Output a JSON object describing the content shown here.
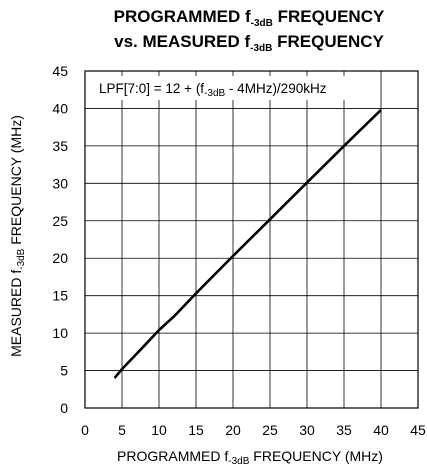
{
  "chart_data": {
    "type": "line",
    "title_line1": {
      "pre": "PROGRAMMED f",
      "sub": "-3dB",
      "post": " FREQUENCY"
    },
    "title_line2": {
      "pre": "vs. MEASURED f",
      "sub": "-3dB",
      "post": " FREQUENCY"
    },
    "xlabel": {
      "pre": "PROGRAMMED f",
      "sub": "-3dB",
      "post": " FREQUENCY (MHz)"
    },
    "ylabel": {
      "pre": "MEASURED f",
      "sub": "-3dB",
      "post": " FREQUENCY (MHz)"
    },
    "annotation": {
      "pre": "LPF[7:0] = 12 + (f",
      "sub": "-3dB",
      "post": " - 4MHz)/290kHz"
    },
    "xlim": [
      0,
      45
    ],
    "ylim": [
      0,
      45
    ],
    "x_ticks": [
      0,
      5,
      10,
      15,
      20,
      25,
      30,
      35,
      40,
      45
    ],
    "y_ticks": [
      0,
      5,
      10,
      15,
      20,
      25,
      30,
      35,
      40,
      45
    ],
    "grid": true,
    "series": [
      {
        "color": "#000000",
        "x": [
          4,
          5,
          8,
          10,
          12,
          15,
          20,
          25,
          30,
          35,
          40
        ],
        "y": [
          4,
          5.2,
          8.3,
          10.4,
          12.2,
          15.3,
          20.3,
          25.2,
          30.1,
          35.0,
          39.8
        ]
      }
    ]
  }
}
